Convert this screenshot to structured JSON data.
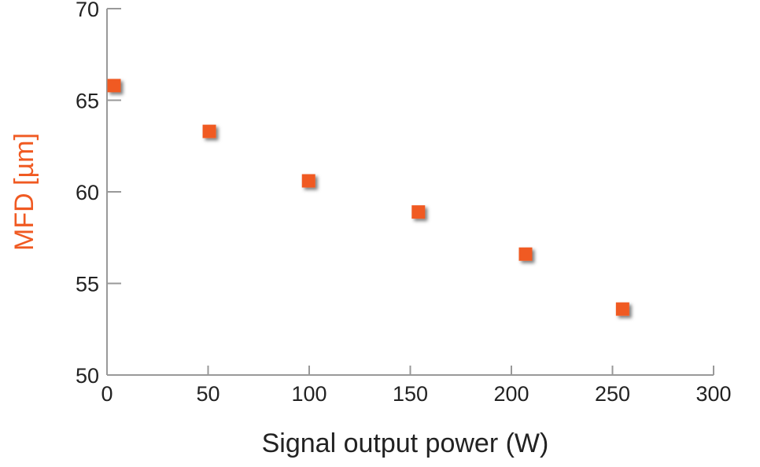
{
  "chart_data": {
    "type": "scatter",
    "title": "",
    "xlabel": "Signal output power (W)",
    "ylabel": "MFD [µm]",
    "xlim": [
      0,
      300
    ],
    "ylim": [
      50,
      70
    ],
    "xticks": [
      0,
      50,
      100,
      150,
      200,
      250,
      300
    ],
    "yticks": [
      50,
      55,
      60,
      65,
      70
    ],
    "grid": false,
    "marker": "square",
    "color": "#f05a22",
    "ylabel_color": "#f05a22",
    "series": [
      {
        "x": [
          3.5,
          50.6,
          99.7,
          154,
          207,
          255
        ],
        "y": [
          65.8,
          63.3,
          60.6,
          58.9,
          56.6,
          53.6
        ]
      }
    ]
  }
}
